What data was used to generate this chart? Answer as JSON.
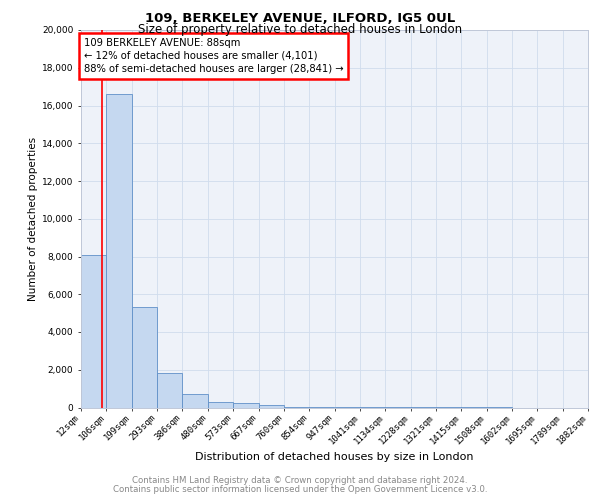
{
  "title": "109, BERKELEY AVENUE, ILFORD, IG5 0UL",
  "subtitle": "Size of property relative to detached houses in London",
  "xlabel": "Distribution of detached houses by size in London",
  "ylabel": "Number of detached properties",
  "bin_labels": [
    "12sqm",
    "106sqm",
    "199sqm",
    "293sqm",
    "386sqm",
    "480sqm",
    "573sqm",
    "667sqm",
    "760sqm",
    "854sqm",
    "947sqm",
    "1041sqm",
    "1134sqm",
    "1228sqm",
    "1321sqm",
    "1415sqm",
    "1508sqm",
    "1602sqm",
    "1695sqm",
    "1789sqm",
    "1882sqm"
  ],
  "bar_values": [
    8100,
    16600,
    5300,
    1850,
    700,
    300,
    230,
    150,
    50,
    20,
    10,
    5,
    3,
    2,
    1,
    1,
    1,
    0,
    0,
    0
  ],
  "bar_color": "#c5d8f0",
  "bar_edge_color": "#6090c8",
  "grid_color": "#d0dced",
  "background_color": "#eef2f9",
  "annotation_text": "109 BERKELEY AVENUE: 88sqm\n← 12% of detached houses are smaller (4,101)\n88% of semi-detached houses are larger (28,841) →",
  "red_line_bin_index": 0,
  "property_sqm": 88,
  "ylim": [
    0,
    20000
  ],
  "yticks": [
    0,
    2000,
    4000,
    6000,
    8000,
    10000,
    12000,
    14000,
    16000,
    18000,
    20000
  ],
  "footer_line1": "Contains HM Land Registry data © Crown copyright and database right 2024.",
  "footer_line2": "Contains public sector information licensed under the Open Government Licence v3.0."
}
